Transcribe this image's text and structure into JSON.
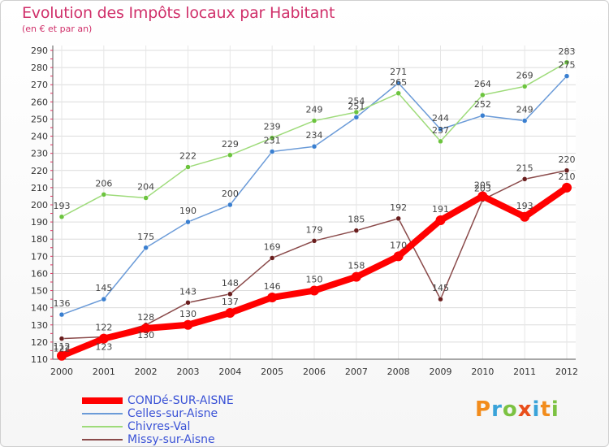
{
  "title": "Evolution des Impôts locaux par Habitant",
  "subtitle": "(en € et par an)",
  "logo": {
    "text": "Proxiti",
    "letters": [
      {
        "ch": "P",
        "color": "#f28c1c"
      },
      {
        "ch": "r",
        "color": "#3aa3d9"
      },
      {
        "ch": "o",
        "color": "#7cc242"
      },
      {
        "ch": "x",
        "color": "#e94e1b"
      },
      {
        "ch": "i",
        "color": "#3aa3d9"
      },
      {
        "ch": "t",
        "color": "#f28c1c"
      },
      {
        "ch": "i",
        "color": "#7cc242"
      }
    ]
  },
  "chart_data": {
    "type": "line",
    "title": "Evolution des Impôts locaux par Habitant",
    "subtitle": "(en € et par an)",
    "x": [
      "2000",
      "2001",
      "2002",
      "2003",
      "2004",
      "2005",
      "2006",
      "2007",
      "2008",
      "2009",
      "2010",
      "2011",
      "2012"
    ],
    "ylim": [
      110,
      290
    ],
    "yticks": [
      110,
      120,
      130,
      140,
      150,
      160,
      170,
      180,
      190,
      200,
      210,
      220,
      230,
      240,
      250,
      260,
      270,
      280,
      290
    ],
    "grid": true,
    "legend_position": "bottom-left",
    "series": [
      {
        "name": "CONDé-SUR-AISNE",
        "color": "#ff0000",
        "marker": "#ff0000",
        "values": [
          112,
          122,
          128,
          130,
          137,
          146,
          150,
          158,
          170,
          191,
          205,
          193,
          210
        ]
      },
      {
        "name": "Celles-sur-Aisne",
        "color": "#6b9bd8",
        "marker": "#3a7fd0",
        "values": [
          136,
          145,
          175,
          190,
          200,
          231,
          234,
          251,
          271,
          244,
          252,
          249,
          275
        ]
      },
      {
        "name": "Chivres-Val",
        "color": "#9edb7a",
        "marker": "#6cc43e",
        "values": [
          193,
          206,
          204,
          222,
          229,
          239,
          249,
          254,
          265,
          237,
          264,
          269,
          283
        ]
      },
      {
        "name": "Missy-sur-Aisne",
        "color": "#8a4a4a",
        "marker": "#6a1e1e",
        "values": [
          122,
          123,
          130,
          143,
          148,
          169,
          179,
          185,
          192,
          145,
          203,
          215,
          220
        ]
      }
    ]
  }
}
